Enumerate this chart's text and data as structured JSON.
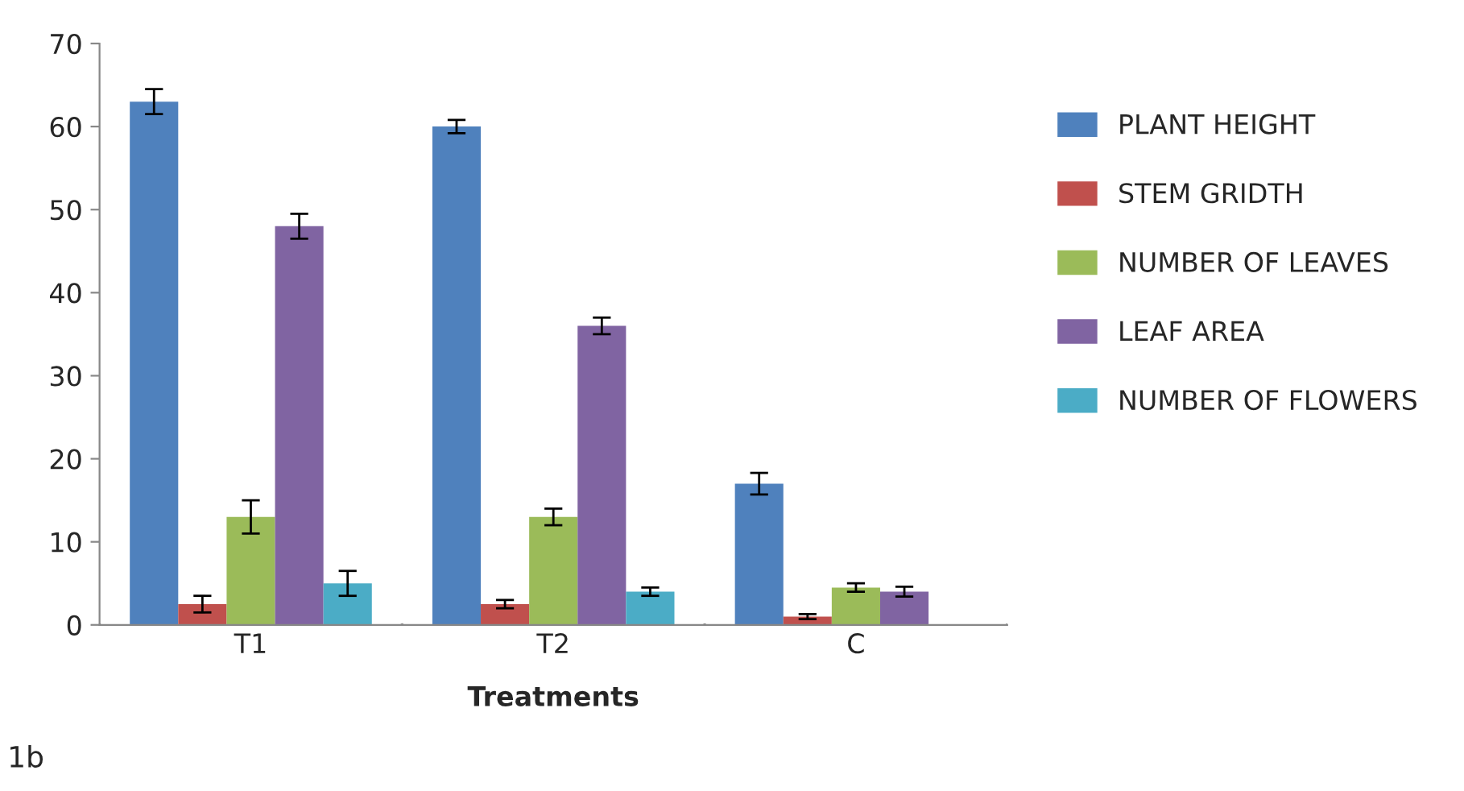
{
  "chart_data": {
    "type": "bar",
    "xlabel": "Treatments",
    "categories": [
      "T1",
      "T2",
      "C"
    ],
    "series": [
      {
        "name": "PLANT HEIGHT",
        "color": "#4f81bd",
        "values": [
          63,
          60,
          17
        ],
        "errors": [
          1.5,
          0.8,
          1.3
        ]
      },
      {
        "name": "STEM GRIDTH",
        "color": "#c0504d",
        "values": [
          2.5,
          2.5,
          1
        ],
        "errors": [
          1,
          0.5,
          0.3
        ]
      },
      {
        "name": "NUMBER OF LEAVES",
        "color": "#9bbb59",
        "values": [
          13,
          13,
          4.5
        ],
        "errors": [
          2,
          1,
          0.5
        ]
      },
      {
        "name": "LEAF AREA",
        "color": "#8064a2",
        "values": [
          48,
          36,
          4
        ],
        "errors": [
          1.5,
          1,
          0.6
        ]
      },
      {
        "name": "NUMBER OF FLOWERS",
        "color": "#4bacc6",
        "values": [
          5,
          4,
          null
        ],
        "errors": [
          1.5,
          0.5,
          null
        ]
      }
    ],
    "ylim": [
      0,
      70
    ],
    "yticks": [
      0,
      10,
      20,
      30,
      40,
      50,
      60,
      70
    ],
    "grid": false,
    "legend": "right",
    "annotations": [
      "1b"
    ]
  }
}
